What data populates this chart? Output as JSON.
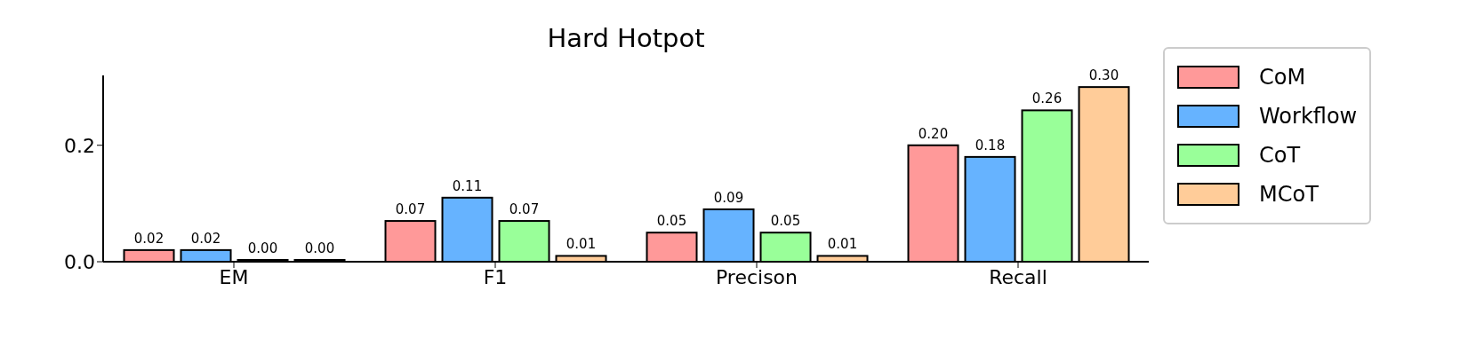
{
  "chart_data": {
    "type": "bar",
    "title": "Hard Hotpot",
    "categories": [
      "EM",
      "F1",
      "Precison",
      "Recall"
    ],
    "series": [
      {
        "name": "CoM",
        "color": "#ff9999",
        "values": [
          0.02,
          0.07,
          0.05,
          0.2
        ],
        "value_labels": [
          "0.02",
          "0.07",
          "0.05",
          "0.20"
        ]
      },
      {
        "name": "Workflow",
        "color": "#66b3ff",
        "values": [
          0.02,
          0.11,
          0.09,
          0.18
        ],
        "value_labels": [
          "0.02",
          "0.11",
          "0.09",
          "0.18"
        ]
      },
      {
        "name": "CoT",
        "color": "#99ff99",
        "values": [
          0.0,
          0.07,
          0.05,
          0.26
        ],
        "value_labels": [
          "0.00",
          "0.07",
          "0.05",
          "0.26"
        ]
      },
      {
        "name": "MCoT",
        "color": "#ffcc99",
        "values": [
          0.0,
          0.01,
          0.01,
          0.3
        ],
        "value_labels": [
          "0.00",
          "0.01",
          "0.01",
          "0.30"
        ]
      }
    ],
    "ylim": [
      0,
      0.32
    ],
    "yticks": [
      {
        "value": 0,
        "label": "0.0"
      },
      {
        "value": 0.2,
        "label": "0.2"
      }
    ],
    "grid": false,
    "legend": "right"
  }
}
